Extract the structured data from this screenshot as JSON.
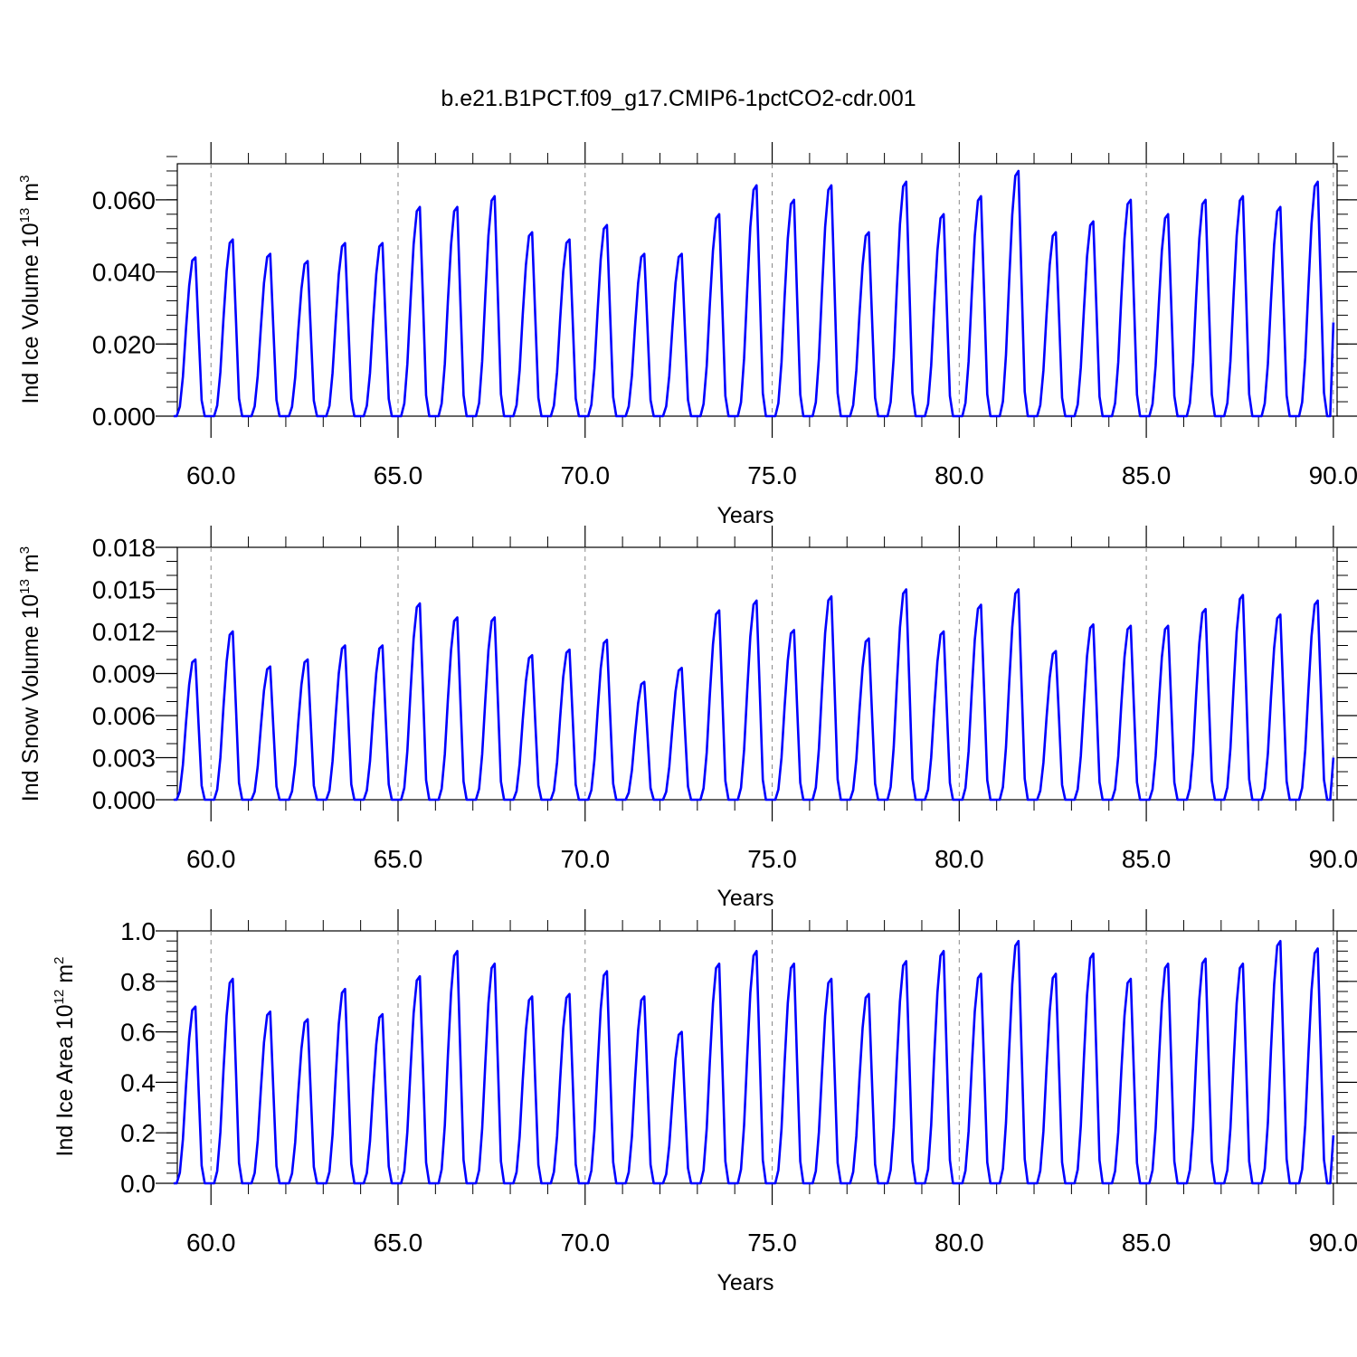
{
  "title": "b.e21.B1PCT.f09_g17.CMIP6-1pctCO2-cdr.001",
  "colors": {
    "line": "#0000ff",
    "axis": "#000000",
    "grid": "#888888"
  },
  "chart_data": [
    {
      "type": "line",
      "name": "ice-volume",
      "xlabel": "Years",
      "ylabel": {
        "main": "Ind Ice Volume 10",
        "sup": "13",
        "unit": " m",
        "unit_sup": "3"
      },
      "xlim": [
        59.1,
        90.1
      ],
      "ylim": [
        0,
        0.07
      ],
      "x_ticks": [
        60,
        65,
        70,
        75,
        80,
        85,
        90
      ],
      "x_tick_labels": [
        "60.0",
        "65.0",
        "70.0",
        "75.0",
        "80.0",
        "85.0",
        "90.0"
      ],
      "y_ticks": [
        0,
        0.02,
        0.04,
        0.06
      ],
      "y_tick_labels": [
        "0.000",
        "0.020",
        "0.040",
        "0.060"
      ],
      "y_minor_step": 0.004,
      "x_minor_step": 1,
      "grid": "vertical dashed at major x ticks",
      "start_year": 59.0,
      "end_value": 0.026,
      "peaks": [
        0.044,
        0.049,
        0.045,
        0.043,
        0.048,
        0.048,
        0.058,
        0.058,
        0.061,
        0.051,
        0.049,
        0.053,
        0.045,
        0.045,
        0.056,
        0.064,
        0.06,
        0.064,
        0.051,
        0.065,
        0.056,
        0.061,
        0.068,
        0.051,
        0.054,
        0.06,
        0.056,
        0.06,
        0.061,
        0.058,
        0.065
      ],
      "series": [
        {
          "color": "#0000ff"
        }
      ]
    },
    {
      "type": "line",
      "name": "snow-volume",
      "xlabel": "Years",
      "ylabel": {
        "main": "Ind Snow Volume 10",
        "sup": "13",
        "unit": " m",
        "unit_sup": "3"
      },
      "xlim": [
        59.1,
        90.1
      ],
      "ylim": [
        0,
        0.018
      ],
      "x_ticks": [
        60,
        65,
        70,
        75,
        80,
        85,
        90
      ],
      "x_tick_labels": [
        "60.0",
        "65.0",
        "70.0",
        "75.0",
        "80.0",
        "85.0",
        "90.0"
      ],
      "y_ticks": [
        0,
        0.003,
        0.006,
        0.009,
        0.012,
        0.015,
        0.018
      ],
      "y_tick_labels": [
        "0.000",
        "0.003",
        "0.006",
        "0.009",
        "0.012",
        "0.015",
        "0.018"
      ],
      "y_minor_step": 0.001,
      "x_minor_step": 1,
      "grid": "vertical dashed at major x ticks",
      "start_year": 59.0,
      "end_value": 0.003,
      "peaks": [
        0.01,
        0.012,
        0.0095,
        0.01,
        0.011,
        0.011,
        0.014,
        0.013,
        0.013,
        0.0103,
        0.0107,
        0.0114,
        0.0084,
        0.0094,
        0.0135,
        0.0142,
        0.0121,
        0.0145,
        0.0115,
        0.015,
        0.012,
        0.0139,
        0.015,
        0.0106,
        0.0125,
        0.0124,
        0.0124,
        0.0136,
        0.0146,
        0.0132,
        0.0142
      ],
      "series": [
        {
          "color": "#0000ff"
        }
      ]
    },
    {
      "type": "line",
      "name": "ice-area",
      "xlabel": "Years",
      "ylabel": {
        "main": "Ind Ice Area 10",
        "sup": "12",
        "unit": " m",
        "unit_sup": "2"
      },
      "xlim": [
        59.1,
        90.1
      ],
      "ylim": [
        0,
        1.0
      ],
      "x_ticks": [
        60,
        65,
        70,
        75,
        80,
        85,
        90
      ],
      "x_tick_labels": [
        "60.0",
        "65.0",
        "70.0",
        "75.0",
        "80.0",
        "85.0",
        "90.0"
      ],
      "y_ticks": [
        0,
        0.2,
        0.4,
        0.6,
        0.8,
        1.0
      ],
      "y_tick_labels": [
        "0.0",
        "0.2",
        "0.4",
        "0.6",
        "0.8",
        "1.0"
      ],
      "y_minor_step": 0.04,
      "x_minor_step": 1,
      "grid": "vertical dashed at major x ticks",
      "start_year": 59.0,
      "end_value": 0.19,
      "peaks": [
        0.7,
        0.81,
        0.68,
        0.65,
        0.77,
        0.67,
        0.82,
        0.92,
        0.87,
        0.74,
        0.75,
        0.84,
        0.74,
        0.6,
        0.87,
        0.92,
        0.87,
        0.81,
        0.75,
        0.88,
        0.92,
        0.83,
        0.96,
        0.83,
        0.91,
        0.81,
        0.87,
        0.89,
        0.87,
        0.96,
        0.93
      ],
      "series": [
        {
          "color": "#0000ff"
        }
      ]
    }
  ]
}
